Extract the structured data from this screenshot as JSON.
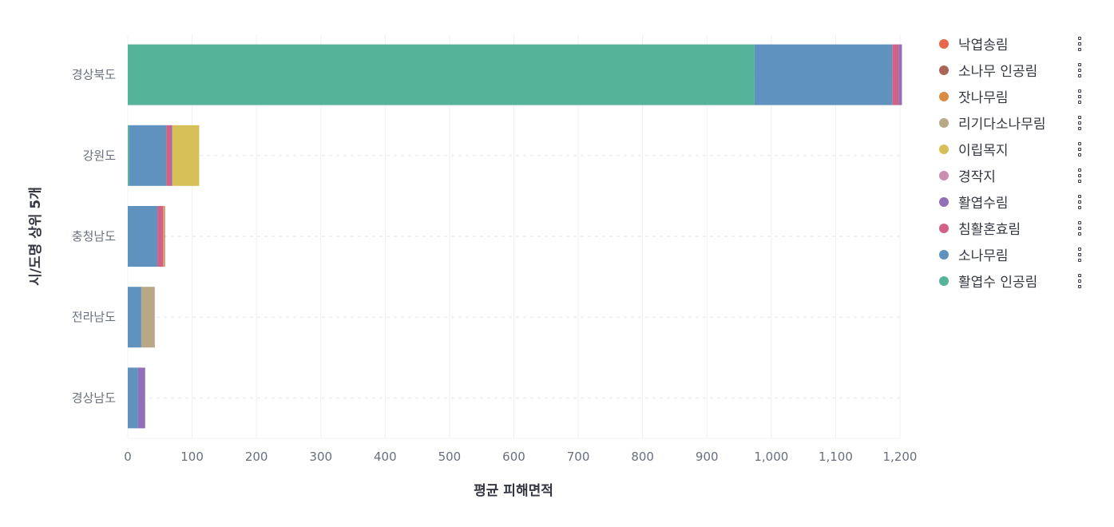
{
  "chart_data": {
    "type": "bar",
    "orientation": "horizontal",
    "stacked": true,
    "title": "",
    "xlabel": "평균 피해면적",
    "ylabel": "시/도명 상위 5개",
    "xlim": [
      0,
      1200
    ],
    "x_ticks": [
      "0",
      "100",
      "200",
      "300",
      "400",
      "500",
      "600",
      "700",
      "800",
      "900",
      "1,000",
      "1,100",
      "1,200"
    ],
    "grid": true,
    "legend_position": "right",
    "categories": [
      "경상북도",
      "강원도",
      "충청남도",
      "전라남도",
      "경상남도"
    ],
    "series": [
      {
        "name": "활엽수 인공림",
        "color": "#54b399",
        "values": [
          974,
          2,
          0,
          0,
          0
        ]
      },
      {
        "name": "소나무림",
        "color": "#6092c0",
        "values": [
          214,
          58,
          46,
          21,
          16
        ]
      },
      {
        "name": "침활혼효림",
        "color": "#d36086",
        "values": [
          10,
          7,
          9,
          0,
          0
        ]
      },
      {
        "name": "활엽수림",
        "color": "#9170b8",
        "values": [
          5,
          2,
          0,
          0,
          11
        ]
      },
      {
        "name": "경작지",
        "color": "#ca8eae",
        "values": [
          0,
          0,
          0,
          0,
          0
        ]
      },
      {
        "name": "이립목지",
        "color": "#d6bf57",
        "values": [
          0,
          42,
          0,
          0,
          0
        ]
      },
      {
        "name": "리기다소나무림",
        "color": "#b9a888",
        "values": [
          0,
          0,
          1,
          21,
          0
        ]
      },
      {
        "name": "잣나무림",
        "color": "#da8b45",
        "values": [
          0,
          0,
          2,
          0,
          0
        ]
      },
      {
        "name": "소나무 인공림",
        "color": "#aa6556",
        "values": [
          0,
          0,
          0,
          0,
          0
        ]
      },
      {
        "name": "낙엽송림",
        "color": "#e7664c",
        "values": [
          0,
          0,
          0,
          0,
          0
        ]
      }
    ]
  },
  "legend": {
    "items": [
      {
        "label": "낙엽송림",
        "color": "#e7664c"
      },
      {
        "label": "소나무 인공림",
        "color": "#aa6556"
      },
      {
        "label": "잣나무림",
        "color": "#da8b45"
      },
      {
        "label": "리기다소나무림",
        "color": "#b9a888"
      },
      {
        "label": "이립목지",
        "color": "#d6bf57"
      },
      {
        "label": "경작지",
        "color": "#ca8eae"
      },
      {
        "label": "활엽수림",
        "color": "#9170b8"
      },
      {
        "label": "침활혼효림",
        "color": "#d36086"
      },
      {
        "label": "소나무림",
        "color": "#6092c0"
      },
      {
        "label": "활엽수 인공림",
        "color": "#54b399"
      }
    ],
    "action_icon": "vertical-ellipsis-icon"
  }
}
